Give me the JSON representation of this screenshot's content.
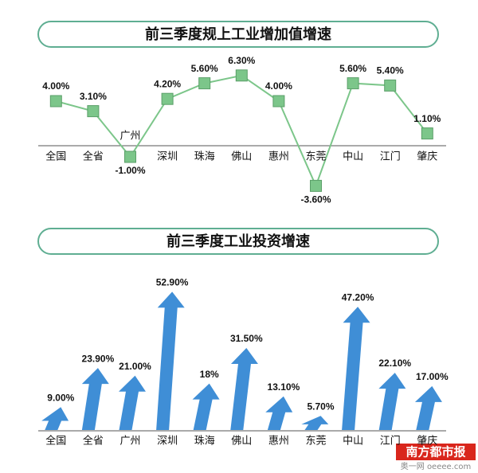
{
  "chart_data": [
    {
      "type": "line",
      "title": "前三季度规上工业增加值增速",
      "categories": [
        "全国",
        "全省",
        "广州",
        "深圳",
        "珠海",
        "佛山",
        "惠州",
        "东莞",
        "中山",
        "江门",
        "肇庆"
      ],
      "values": [
        4.0,
        3.1,
        -1.0,
        4.2,
        5.6,
        6.3,
        4.0,
        -3.6,
        5.6,
        5.4,
        1.1
      ],
      "value_labels": [
        "4.00%",
        "3.10%",
        "-1.00%",
        "4.20%",
        "5.60%",
        "6.30%",
        "4.00%",
        "-3.60%",
        "5.60%",
        "5.40%",
        "1.10%"
      ],
      "color": "#7cc68a",
      "ylim": [
        -4.5,
        7
      ]
    },
    {
      "type": "arrow",
      "title": "前三季度工业投资增速",
      "categories": [
        "全国",
        "全省",
        "广州",
        "深圳",
        "珠海",
        "佛山",
        "惠州",
        "东莞",
        "中山",
        "江门",
        "肇庆"
      ],
      "values": [
        9.0,
        23.9,
        21.0,
        52.9,
        18,
        31.5,
        13.1,
        5.7,
        47.2,
        22.1,
        17.0
      ],
      "value_labels": [
        "9.00%",
        "23.90%",
        "21.00%",
        "52.90%",
        "18%",
        "31.50%",
        "13.10%",
        "5.70%",
        "47.20%",
        "22.10%",
        "17.00%"
      ],
      "color": "#3f8ed6",
      "ylim": [
        0,
        60
      ]
    }
  ],
  "watermark": {
    "brand": "南方都市报",
    "site": "奥一网 oeeee.com"
  }
}
